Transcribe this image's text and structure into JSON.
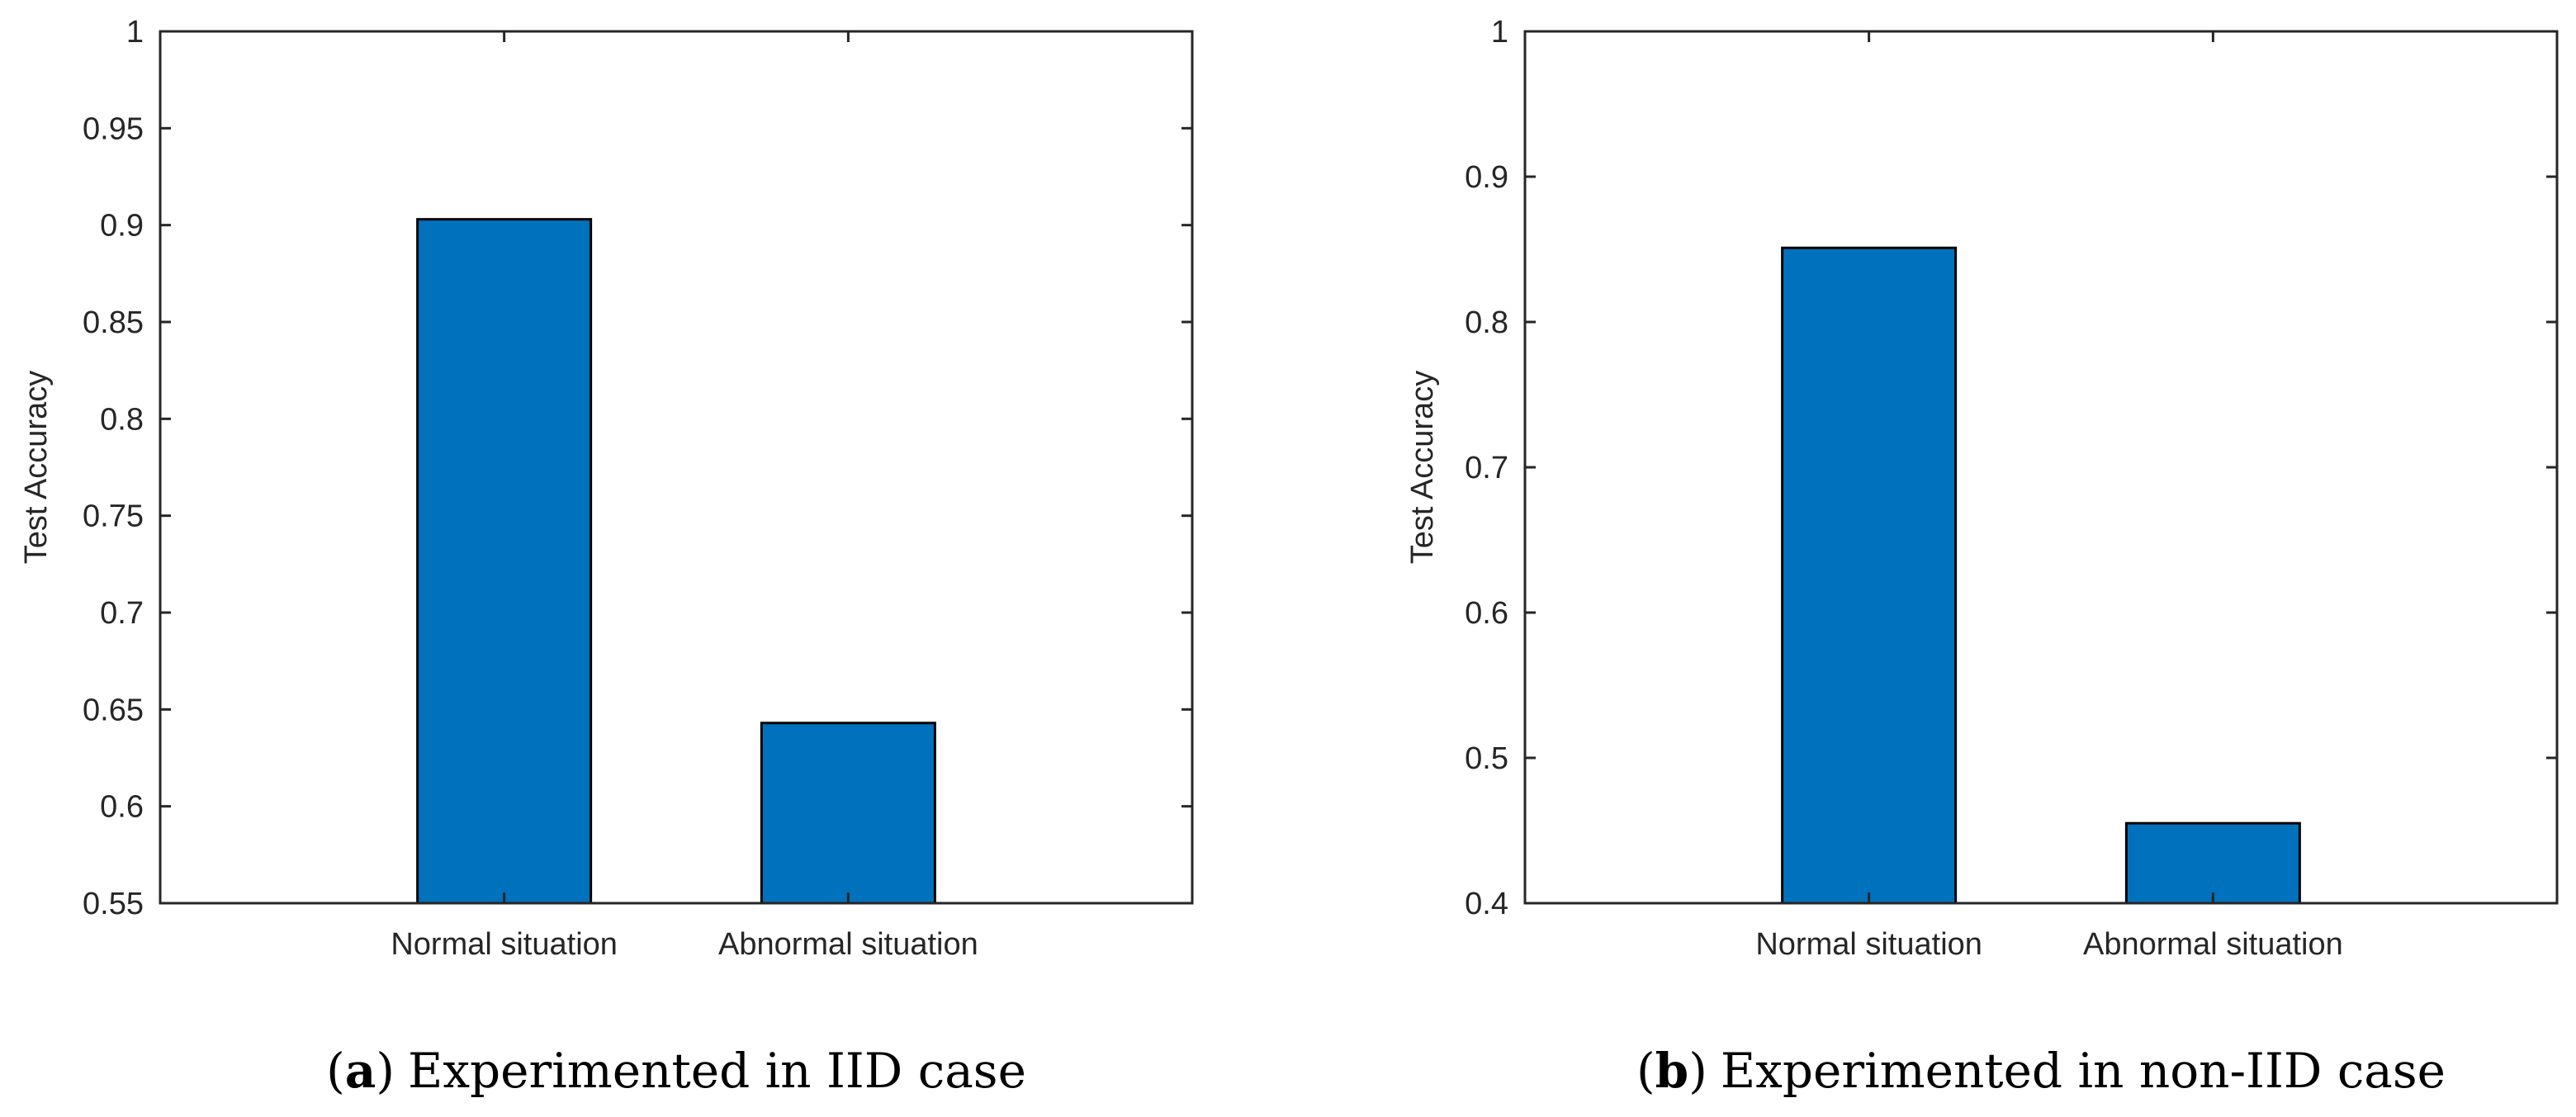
{
  "chart_data": [
    {
      "type": "bar",
      "categories": [
        "Normal situation",
        "Abnormal situation"
      ],
      "values": [
        0.903,
        0.643
      ],
      "ylabel": "Test Accuracy",
      "xlabel": "",
      "ylim": [
        0.55,
        1
      ],
      "yticks": [
        "0.55",
        "0.6",
        "0.65",
        "0.7",
        "0.75",
        "0.8",
        "0.85",
        "0.9",
        "0.95",
        "1"
      ],
      "bar_color": "#0072BD",
      "caption_letter": "a",
      "caption_text": "Experimented in IID case"
    },
    {
      "type": "bar",
      "categories": [
        "Normal situation",
        "Abnormal situation"
      ],
      "values": [
        0.851,
        0.455
      ],
      "ylabel": "Test Accuracy",
      "xlabel": "",
      "ylim": [
        0.4,
        1
      ],
      "yticks": [
        "0.4",
        "0.5",
        "0.6",
        "0.7",
        "0.8",
        "0.9",
        "1"
      ],
      "bar_color": "#0072BD",
      "caption_letter": "b",
      "caption_text": "Experimented in non-IID case"
    }
  ]
}
